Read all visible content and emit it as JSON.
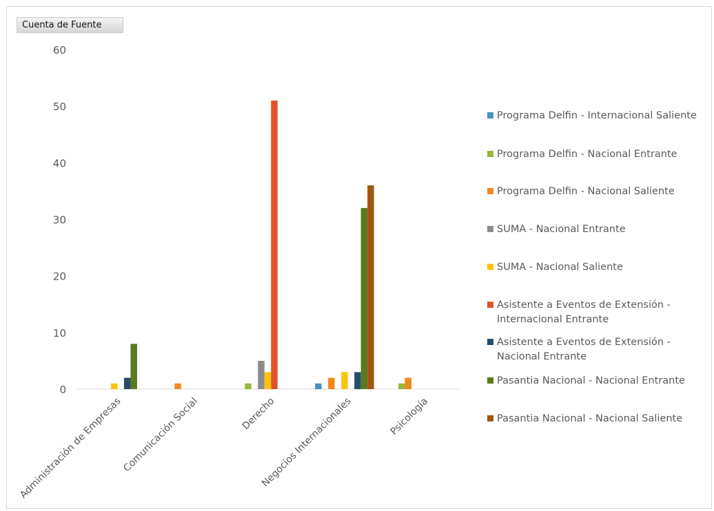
{
  "field_button": {
    "label": "Cuenta de Fuente"
  },
  "chart_data": {
    "type": "bar",
    "title": "",
    "xlabel": "",
    "ylabel": "",
    "ylim": [
      0,
      60
    ],
    "yticks": [
      0,
      10,
      20,
      30,
      40,
      50,
      60
    ],
    "grid": false,
    "legend": "right",
    "categories": [
      "Administración de Empresas",
      "Comunicación Social",
      "Derecho",
      "Negocios Internacionales",
      "Psicología"
    ],
    "series": [
      {
        "name": "Programa Delfin  - Internacional Saliente",
        "color": "#4a90c0",
        "values": [
          null,
          null,
          null,
          1,
          null
        ]
      },
      {
        "name": "Programa Delfin  - Nacional Entrante",
        "color": "#9ab83a",
        "values": [
          null,
          null,
          1,
          null,
          1
        ]
      },
      {
        "name": "Programa Delfin  - Nacional Saliente",
        "color": "#ee8a1e",
        "values": [
          null,
          1,
          null,
          2,
          2
        ]
      },
      {
        "name": "SUMA - Nacional Entrante",
        "color": "#8c8c8c",
        "values": [
          null,
          null,
          5,
          null,
          null
        ]
      },
      {
        "name": "SUMA - Nacional Saliente",
        "color": "#fcc30a",
        "values": [
          1,
          null,
          3,
          3,
          null
        ]
      },
      {
        "name": "Asistente a Eventos de Extensión - Internacional Entrante",
        "color": "#e0532a",
        "values": [
          null,
          null,
          51,
          null,
          null
        ]
      },
      {
        "name": "Asistente a Eventos de Extensión - Nacional Entrante",
        "color": "#264e6a",
        "values": [
          2,
          null,
          null,
          3,
          null
        ]
      },
      {
        "name": "Pasantia Nacional - Nacional Entrante",
        "color": "#5a7a1e",
        "values": [
          8,
          null,
          null,
          32,
          null
        ]
      },
      {
        "name": "Pasantia Nacional - Nacional Saliente",
        "color": "#a0560b",
        "values": [
          null,
          null,
          null,
          36,
          null
        ]
      }
    ]
  }
}
